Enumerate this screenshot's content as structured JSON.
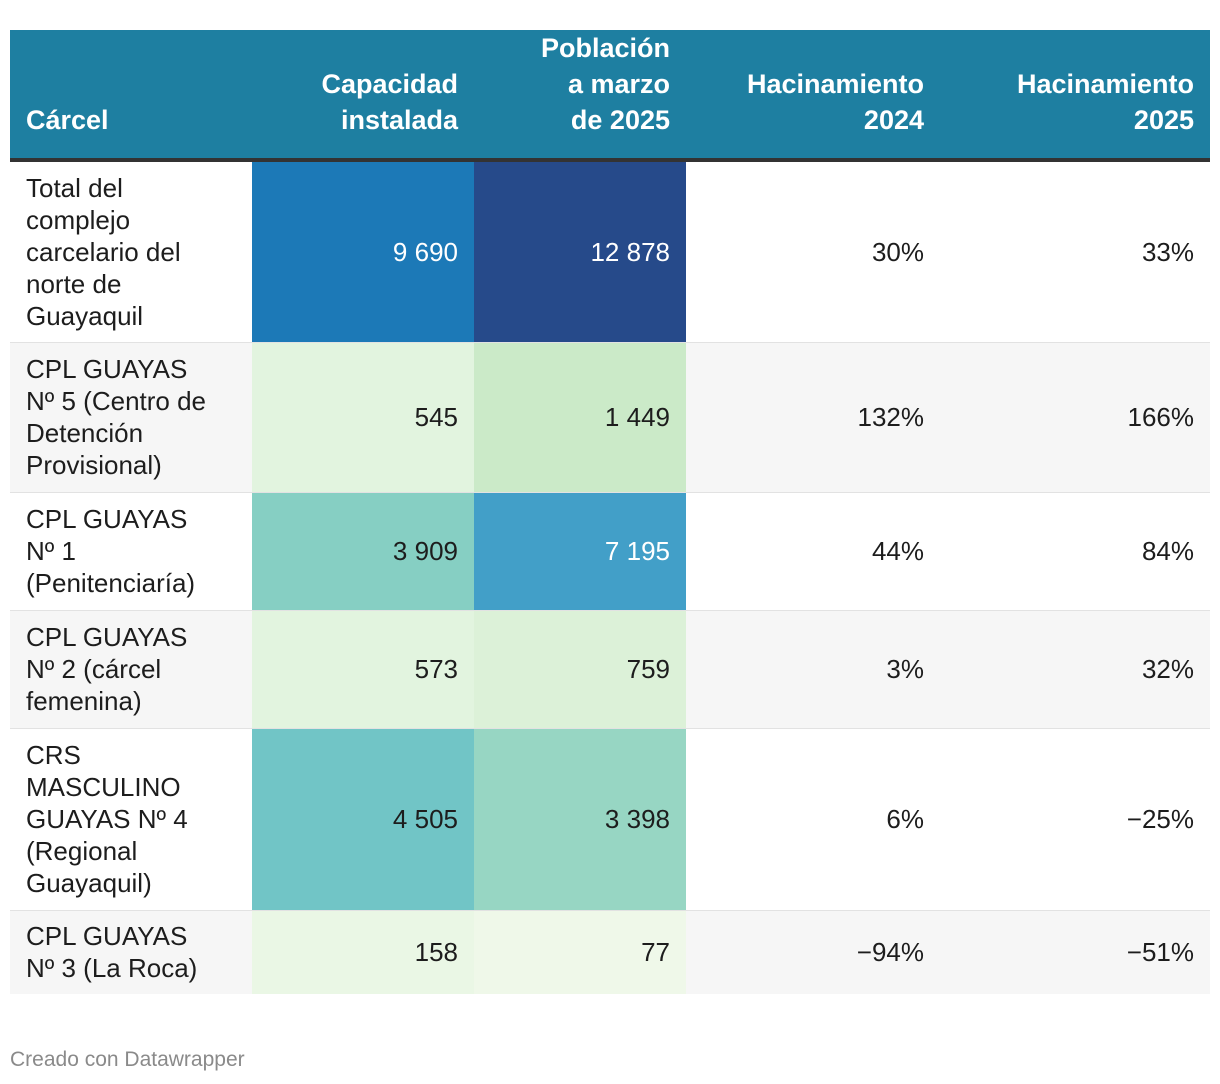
{
  "chart_data": {
    "type": "table",
    "columns": [
      "Cárcel",
      "Capacidad instalada",
      "Población a marzo de 2025",
      "Hacinamiento 2024",
      "Hacinamiento 2025"
    ],
    "header": {
      "col0": [
        "Cárcel"
      ],
      "col1": [
        "Capacidad",
        "instalada"
      ],
      "col2": [
        "Población",
        "a marzo",
        "de 2025"
      ],
      "col3": [
        "Hacinamiento",
        "2024"
      ],
      "col4": [
        "Hacinamiento",
        "2025"
      ]
    },
    "rows": [
      {
        "name": "Total del complejo carcelario del norte de Guayaquil",
        "name_lines": [
          "Total del",
          "complejo",
          "carcelario del",
          "norte de",
          "Guayaquil"
        ],
        "capacidad": "9 690",
        "capacidad_value": 9690,
        "poblacion": "12 878",
        "poblacion_value": 12878,
        "h2024": "30%",
        "h2025": "33%",
        "capacidad_color": "#1c79b7",
        "capacidad_text_color": "#ffffff",
        "poblacion_color": "#264a8a",
        "poblacion_text_color": "#ffffff"
      },
      {
        "name": "CPL GUAYAS Nº 5 (Centro de Detención Provisional)",
        "name_lines": [
          "CPL GUAYAS",
          "Nº 5 (Centro de",
          "Detención",
          "Provisional)"
        ],
        "capacidad": "545",
        "capacidad_value": 545,
        "poblacion": "1 449",
        "poblacion_value": 1449,
        "h2024": "132%",
        "h2025": "166%",
        "capacidad_color": "#e2f4df",
        "capacidad_text_color": "#1d1d1d",
        "poblacion_color": "#cbeac8",
        "poblacion_text_color": "#1d1d1d"
      },
      {
        "name": "CPL GUAYAS Nº 1 (Penitenciaría)",
        "name_lines": [
          "CPL GUAYAS",
          "Nº 1",
          "(Penitenciaría)"
        ],
        "capacidad": "3 909",
        "capacidad_value": 3909,
        "poblacion": "7 195",
        "poblacion_value": 7195,
        "h2024": "44%",
        "h2025": "84%",
        "capacidad_color": "#86cfc3",
        "capacidad_text_color": "#1d1d1d",
        "poblacion_color": "#429fc8",
        "poblacion_text_color": "#ffffff"
      },
      {
        "name": "CPL GUAYAS Nº 2 (cárcel femenina)",
        "name_lines": [
          "CPL GUAYAS",
          "Nº 2 (cárcel",
          "femenina)"
        ],
        "capacidad": "573",
        "capacidad_value": 573,
        "poblacion": "759",
        "poblacion_value": 759,
        "h2024": "3%",
        "h2025": "32%",
        "capacidad_color": "#e2f4df",
        "capacidad_text_color": "#1d1d1d",
        "poblacion_color": "#dcf1d8",
        "poblacion_text_color": "#1d1d1d"
      },
      {
        "name": "CRS MASCULINO GUAYAS Nº 4 (Regional Guayaquil)",
        "name_lines": [
          "CRS",
          "MASCULINO",
          "GUAYAS Nº 4",
          "(Regional",
          "Guayaquil)"
        ],
        "capacidad": "4 505",
        "capacidad_value": 4505,
        "poblacion": "3 398",
        "poblacion_value": 3398,
        "h2024": "6%",
        "h2025": "−25%",
        "capacidad_color": "#71c5c6",
        "capacidad_text_color": "#1d1d1d",
        "poblacion_color": "#97d6c3",
        "poblacion_text_color": "#1d1d1d"
      },
      {
        "name": "CPL GUAYAS Nº 3 (La Roca)",
        "name_lines": [
          "CPL GUAYAS",
          "Nº 3 (La Roca)"
        ],
        "capacidad": "158",
        "capacidad_value": 158,
        "poblacion": "77",
        "poblacion_value": 77,
        "h2024": "−94%",
        "h2025": "−51%",
        "capacidad_color": "#eaf7e5",
        "capacidad_text_color": "#1d1d1d",
        "poblacion_color": "#eff8e9",
        "poblacion_text_color": "#1d1d1d"
      }
    ]
  },
  "colors": {
    "header_bg": "#1e7fa1",
    "header_text": "#ffffff",
    "alt_row_bg": "#f6f6f6",
    "footer_text": "#8a8a8a"
  },
  "footer": {
    "credit": "Creado con Datawrapper"
  }
}
